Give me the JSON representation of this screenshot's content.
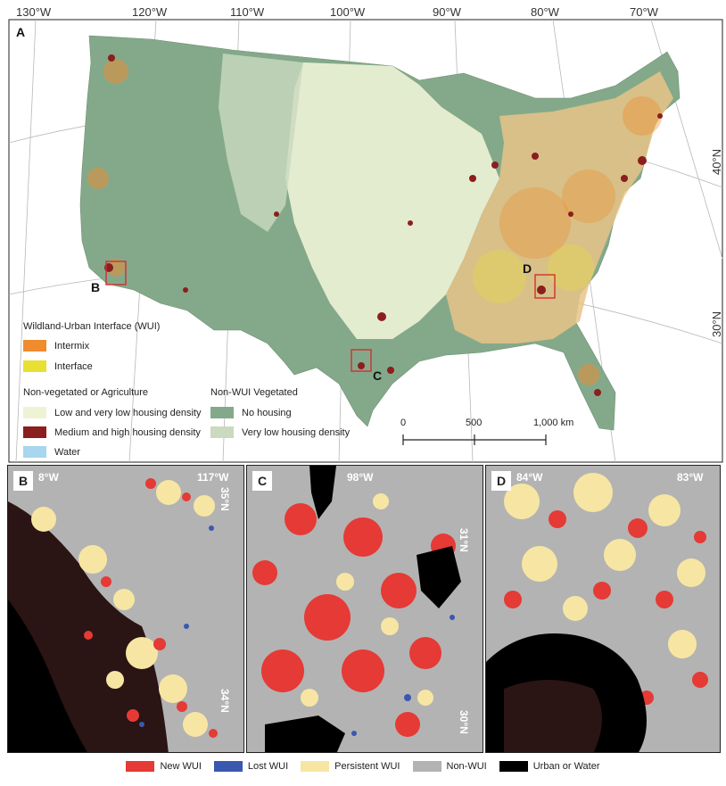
{
  "panel_a": {
    "letter": "A",
    "lon_labels": [
      "130°W",
      "120°W",
      "110°W",
      "100°W",
      "90°W",
      "80°W",
      "70°W"
    ],
    "lat_labels": [
      "40°N",
      "30°N"
    ],
    "boxes": [
      "B",
      "C",
      "D"
    ]
  },
  "legend": {
    "wui_title": "Wildland-Urban Interface (WUI)",
    "intermix": "Intermix",
    "interface": "Interface",
    "nonveg_title": "Non-vegetated or Agriculture",
    "low_density": "Low  and very low housing density",
    "med_high_density": "Medium and high housing density",
    "water": "Water",
    "nonwui_title": "Non-WUI Vegetated",
    "no_housing": "No housing",
    "very_low_density": "Very low housing density"
  },
  "scale": {
    "labels": [
      "0",
      "500",
      "1,000 km"
    ]
  },
  "insets": {
    "b": {
      "letter": "B",
      "lon_left": "8°W",
      "lon_right": "117°W",
      "lat_top": "35°N",
      "lat_bottom": "34°N"
    },
    "c": {
      "letter": "C",
      "lon": "98°W",
      "lat_top": "31°N",
      "lat_bottom": "30°N"
    },
    "d": {
      "letter": "D",
      "lon_left": "84°W",
      "lon_right": "83°W"
    }
  },
  "bottom_legend": [
    {
      "label": "New WUI",
      "color": "#e53a35"
    },
    {
      "label": "Lost WUI",
      "color": "#3b58b0"
    },
    {
      "label": "Persistent WUI",
      "color": "#f7e6a3"
    },
    {
      "label": "Non-WUI",
      "color": "#b3b3b3"
    },
    {
      "label": "Urban or Water",
      "color": "#000000"
    }
  ],
  "colors": {
    "intermix": "#ef8c2e",
    "interface": "#e8e032",
    "low_density": "#eef3d6",
    "med_high_density": "#8b1e1e",
    "water": "#a7d6ee",
    "no_housing": "#84a98a",
    "very_low_density": "#cbd9bf"
  }
}
